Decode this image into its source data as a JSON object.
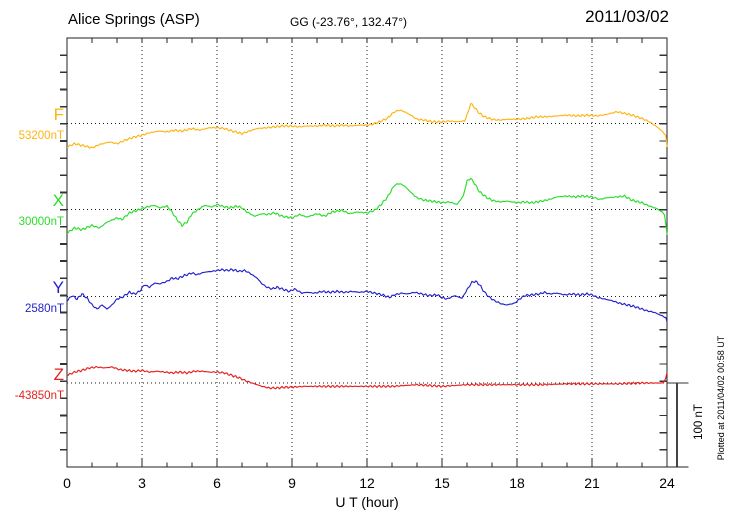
{
  "header": {
    "station": "Alice Springs (ASP)",
    "coords": "GG (-23.76°, 132.47°)",
    "date": "2011/03/02"
  },
  "footer": {
    "xaxis_title": "U T (hour)",
    "watermark": "Plotted at 2011/04/02 00:58 UT"
  },
  "scale_bar": {
    "label": "100 nT",
    "span_nT": 100
  },
  "chart_data": {
    "type": "line",
    "title": "Alice Springs (ASP) magnetogram 2011/03/02",
    "xlabel": "U T (hour)",
    "x_range": [
      0,
      24
    ],
    "x_tick_labels": [
      "0",
      "3",
      "6",
      "9",
      "12",
      "15",
      "18",
      "21",
      "24"
    ],
    "grid": "dotted vertical lines every 3 h; dotted horizontal baseline per component",
    "legend_position": "left margin, one colored label per trace",
    "minor_tick_nT": 20,
    "units": "nT",
    "note": "point values are offsets in nT from each component baseline value",
    "series": [
      {
        "name": "F",
        "baseline_label": "53200nT",
        "base_value_nT": 53200,
        "color": "#FFB412",
        "points": [
          [
            0,
            -28
          ],
          [
            0.3,
            -24
          ],
          [
            0.6,
            -26
          ],
          [
            1,
            -29
          ],
          [
            1.3,
            -25
          ],
          [
            1.7,
            -22
          ],
          [
            2,
            -24
          ],
          [
            2.4,
            -19
          ],
          [
            2.7,
            -16
          ],
          [
            3,
            -14
          ],
          [
            3.3,
            -11
          ],
          [
            3.7,
            -9
          ],
          [
            4,
            -10
          ],
          [
            4.3,
            -8
          ],
          [
            4.6,
            -9
          ],
          [
            5,
            -6
          ],
          [
            5.3,
            -8
          ],
          [
            5.7,
            -5
          ],
          [
            6,
            -5
          ],
          [
            6.3,
            -6
          ],
          [
            6.6,
            -9
          ],
          [
            7,
            -12
          ],
          [
            7.3,
            -9
          ],
          [
            7.6,
            -6
          ],
          [
            8,
            -5
          ],
          [
            8.3,
            -4
          ],
          [
            8.6,
            -3
          ],
          [
            9,
            -3
          ],
          [
            9.3,
            -4
          ],
          [
            9.6,
            -3
          ],
          [
            10,
            -3
          ],
          [
            10.3,
            -2
          ],
          [
            10.7,
            -3
          ],
          [
            11,
            -2
          ],
          [
            11.3,
            -3
          ],
          [
            11.7,
            -2
          ],
          [
            12,
            -2
          ],
          [
            12.2,
            -1
          ],
          [
            12.5,
            2
          ],
          [
            12.8,
            6
          ],
          [
            13.1,
            14
          ],
          [
            13.3,
            16
          ],
          [
            13.5,
            14
          ],
          [
            13.8,
            9
          ],
          [
            14,
            5
          ],
          [
            14.3,
            4
          ],
          [
            14.6,
            2
          ],
          [
            15,
            2
          ],
          [
            15.3,
            3
          ],
          [
            15.6,
            2
          ],
          [
            15.9,
            3
          ],
          [
            16.05,
            14
          ],
          [
            16.15,
            24
          ],
          [
            16.3,
            19
          ],
          [
            16.5,
            12
          ],
          [
            16.7,
            8
          ],
          [
            17,
            5
          ],
          [
            17.3,
            4
          ],
          [
            17.6,
            5
          ],
          [
            18,
            5
          ],
          [
            18.4,
            6
          ],
          [
            18.8,
            8
          ],
          [
            19.2,
            8
          ],
          [
            19.6,
            9
          ],
          [
            20,
            10
          ],
          [
            20.4,
            9
          ],
          [
            20.8,
            10
          ],
          [
            21.2,
            9
          ],
          [
            21.6,
            11
          ],
          [
            22,
            14
          ],
          [
            22.3,
            12
          ],
          [
            22.6,
            10
          ],
          [
            23,
            6
          ],
          [
            23.3,
            2
          ],
          [
            23.6,
            -4
          ],
          [
            23.8,
            -9
          ],
          [
            23.95,
            -14
          ],
          [
            24,
            -28
          ]
        ]
      },
      {
        "name": "X",
        "baseline_label": "30000nT",
        "base_value_nT": 30000,
        "color": "#2BDD2B",
        "points": [
          [
            0,
            -28
          ],
          [
            0.3,
            -22
          ],
          [
            0.6,
            -24
          ],
          [
            1,
            -19
          ],
          [
            1.3,
            -22
          ],
          [
            1.6,
            -15
          ],
          [
            2,
            -10
          ],
          [
            2.2,
            -12
          ],
          [
            2.5,
            -4
          ],
          [
            2.8,
            -1
          ],
          [
            3,
            1
          ],
          [
            3.2,
            3
          ],
          [
            3.5,
            5
          ],
          [
            3.7,
            2
          ],
          [
            4,
            4
          ],
          [
            4.2,
            -3
          ],
          [
            4.4,
            -12
          ],
          [
            4.6,
            -19
          ],
          [
            4.8,
            -15
          ],
          [
            5,
            -5
          ],
          [
            5.3,
            1
          ],
          [
            5.5,
            5
          ],
          [
            5.8,
            3
          ],
          [
            6,
            6
          ],
          [
            6.2,
            4
          ],
          [
            6.5,
            2
          ],
          [
            6.8,
            4
          ],
          [
            7,
            2
          ],
          [
            7.2,
            -3
          ],
          [
            7.5,
            -8
          ],
          [
            7.8,
            -5
          ],
          [
            8,
            -6
          ],
          [
            8.3,
            -4
          ],
          [
            8.6,
            -8
          ],
          [
            9,
            -10
          ],
          [
            9.3,
            -6
          ],
          [
            9.6,
            -9
          ],
          [
            10,
            -5
          ],
          [
            10.3,
            -8
          ],
          [
            10.6,
            -3
          ],
          [
            11,
            -1
          ],
          [
            11.3,
            -5
          ],
          [
            11.6,
            -3
          ],
          [
            12,
            -4
          ],
          [
            12.3,
            -1
          ],
          [
            12.5,
            4
          ],
          [
            12.8,
            14
          ],
          [
            13.1,
            29
          ],
          [
            13.3,
            31
          ],
          [
            13.5,
            28
          ],
          [
            13.8,
            19
          ],
          [
            14,
            14
          ],
          [
            14.3,
            11
          ],
          [
            14.6,
            10
          ],
          [
            15,
            8
          ],
          [
            15.3,
            9
          ],
          [
            15.6,
            6
          ],
          [
            15.85,
            16
          ],
          [
            16,
            34
          ],
          [
            16.15,
            37
          ],
          [
            16.3,
            31
          ],
          [
            16.5,
            21
          ],
          [
            16.8,
            14
          ],
          [
            17,
            11
          ],
          [
            17.3,
            9
          ],
          [
            17.6,
            10
          ],
          [
            18,
            8
          ],
          [
            18.3,
            9
          ],
          [
            18.6,
            8
          ],
          [
            19,
            10
          ],
          [
            19.3,
            12
          ],
          [
            19.6,
            15
          ],
          [
            20,
            16
          ],
          [
            20.3,
            15
          ],
          [
            20.6,
            16
          ],
          [
            21,
            15
          ],
          [
            21.3,
            12
          ],
          [
            21.6,
            14
          ],
          [
            22,
            15
          ],
          [
            22.3,
            16
          ],
          [
            22.6,
            11
          ],
          [
            23,
            8
          ],
          [
            23.3,
            4
          ],
          [
            23.6,
            1
          ],
          [
            23.8,
            -3
          ],
          [
            23.9,
            -6
          ],
          [
            24,
            -30
          ]
        ]
      },
      {
        "name": "Y",
        "baseline_label": "2580nT",
        "base_value_nT": 2580,
        "color": "#2222CC",
        "points": [
          [
            0,
            -5
          ],
          [
            0.2,
            1
          ],
          [
            0.4,
            -3
          ],
          [
            0.6,
            3
          ],
          [
            0.8,
            -2
          ],
          [
            1,
            -10
          ],
          [
            1.2,
            -15
          ],
          [
            1.4,
            -10
          ],
          [
            1.6,
            -15
          ],
          [
            1.8,
            -10
          ],
          [
            2,
            -3
          ],
          [
            2.2,
            -1
          ],
          [
            2.5,
            5
          ],
          [
            2.7,
            3
          ],
          [
            2.9,
            6
          ],
          [
            3.1,
            14
          ],
          [
            3.3,
            11
          ],
          [
            3.5,
            16
          ],
          [
            3.7,
            15
          ],
          [
            4,
            18
          ],
          [
            4.2,
            22
          ],
          [
            4.4,
            21
          ],
          [
            4.7,
            25
          ],
          [
            5,
            28
          ],
          [
            5.2,
            26
          ],
          [
            5.5,
            29
          ],
          [
            5.8,
            30
          ],
          [
            6,
            31
          ],
          [
            6.2,
            32
          ],
          [
            6.4,
            31
          ],
          [
            6.6,
            32
          ],
          [
            6.9,
            30
          ],
          [
            7.1,
            31
          ],
          [
            7.3,
            28
          ],
          [
            7.6,
            22
          ],
          [
            7.8,
            15
          ],
          [
            8,
            11
          ],
          [
            8.2,
            9
          ],
          [
            8.4,
            11
          ],
          [
            8.6,
            9
          ],
          [
            8.9,
            6
          ],
          [
            9.1,
            9
          ],
          [
            9.4,
            4
          ],
          [
            9.6,
            5
          ],
          [
            9.9,
            4
          ],
          [
            10.2,
            6
          ],
          [
            10.5,
            5
          ],
          [
            10.8,
            6
          ],
          [
            11.1,
            5
          ],
          [
            11.4,
            6
          ],
          [
            11.7,
            5
          ],
          [
            12,
            6
          ],
          [
            12.3,
            4
          ],
          [
            12.6,
            2
          ],
          [
            12.9,
            -1
          ],
          [
            13.1,
            2
          ],
          [
            13.4,
            4
          ],
          [
            13.6,
            3
          ],
          [
            13.9,
            5
          ],
          [
            14.2,
            3
          ],
          [
            14.5,
            1
          ],
          [
            14.8,
            2
          ],
          [
            15,
            -1
          ],
          [
            15.2,
            -3
          ],
          [
            15.5,
            1
          ],
          [
            15.8,
            -2
          ],
          [
            16,
            8
          ],
          [
            16.2,
            17
          ],
          [
            16.35,
            18
          ],
          [
            16.5,
            14
          ],
          [
            16.7,
            5
          ],
          [
            16.9,
            -1
          ],
          [
            17.1,
            -5
          ],
          [
            17.4,
            -9
          ],
          [
            17.6,
            -10
          ],
          [
            17.9,
            -8
          ],
          [
            18.1,
            -3
          ],
          [
            18.3,
            1
          ],
          [
            18.6,
            2
          ],
          [
            18.9,
            3
          ],
          [
            19.1,
            5
          ],
          [
            19.3,
            3
          ],
          [
            19.6,
            4
          ],
          [
            19.9,
            2
          ],
          [
            20.2,
            3
          ],
          [
            20.5,
            2
          ],
          [
            20.8,
            3
          ],
          [
            21,
            2
          ],
          [
            21.2,
            -1
          ],
          [
            21.5,
            -3
          ],
          [
            21.8,
            -5
          ],
          [
            22.1,
            -8
          ],
          [
            22.4,
            -10
          ],
          [
            22.7,
            -12
          ],
          [
            23,
            -15
          ],
          [
            23.2,
            -17
          ],
          [
            23.5,
            -19
          ],
          [
            23.8,
            -23
          ],
          [
            23.95,
            -25
          ],
          [
            24,
            -30
          ]
        ]
      },
      {
        "name": "Z",
        "baseline_label": "-43850nT",
        "base_value_nT": -43850,
        "color": "#E62020",
        "points": [
          [
            0,
            9
          ],
          [
            0.3,
            13
          ],
          [
            0.6,
            15
          ],
          [
            0.9,
            18
          ],
          [
            1.2,
            19
          ],
          [
            1.5,
            18
          ],
          [
            1.8,
            19
          ],
          [
            2.1,
            16
          ],
          [
            2.4,
            15
          ],
          [
            2.7,
            14
          ],
          [
            3,
            15
          ],
          [
            3.3,
            13
          ],
          [
            3.6,
            14
          ],
          [
            3.9,
            13
          ],
          [
            4.2,
            12
          ],
          [
            4.5,
            13
          ],
          [
            4.8,
            12
          ],
          [
            5.1,
            14
          ],
          [
            5.4,
            14
          ],
          [
            5.7,
            13
          ],
          [
            6,
            13
          ],
          [
            6.3,
            12
          ],
          [
            6.6,
            9
          ],
          [
            6.9,
            6
          ],
          [
            7.2,
            2
          ],
          [
            7.5,
            -1
          ],
          [
            7.8,
            -4
          ],
          [
            8.1,
            -6
          ],
          [
            8.4,
            -6
          ],
          [
            8.7,
            -5
          ],
          [
            9,
            -5
          ],
          [
            9.5,
            -4
          ],
          [
            10,
            -4
          ],
          [
            11,
            -4
          ],
          [
            12,
            -4
          ],
          [
            13,
            -4
          ],
          [
            14,
            -2
          ],
          [
            15,
            -4
          ],
          [
            16,
            -2
          ],
          [
            17,
            -2
          ],
          [
            18,
            -2
          ],
          [
            19,
            -2
          ],
          [
            20,
            -1
          ],
          [
            21,
            -1
          ],
          [
            22,
            -1
          ],
          [
            23,
            0
          ],
          [
            23.5,
            0
          ],
          [
            23.85,
            0
          ],
          [
            23.95,
            6
          ],
          [
            24,
            13
          ]
        ]
      }
    ]
  }
}
